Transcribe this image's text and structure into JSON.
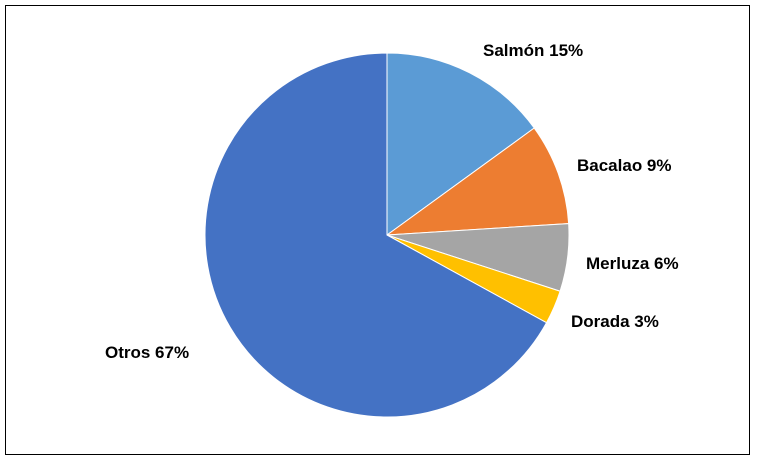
{
  "chart_data": {
    "type": "pie",
    "title": "",
    "start_angle_deg": 0,
    "direction": "clockwise",
    "slices": [
      {
        "name": "Salmón",
        "value": 15,
        "label": "Salmón 15%",
        "color": "#5B9BD5"
      },
      {
        "name": "Bacalao",
        "value": 9,
        "label": "Bacalao 9%",
        "color": "#ED7D31"
      },
      {
        "name": "Merluza",
        "value": 6,
        "label": "Merluza 6%",
        "color": "#A5A5A5"
      },
      {
        "name": "Dorada",
        "value": 3,
        "label": "Dorada 3%",
        "color": "#FFC000"
      },
      {
        "name": "Otros",
        "value": 67,
        "label": "Otros 67%",
        "color": "#4472C4"
      }
    ],
    "legend": "none",
    "label_placement": "outside"
  }
}
